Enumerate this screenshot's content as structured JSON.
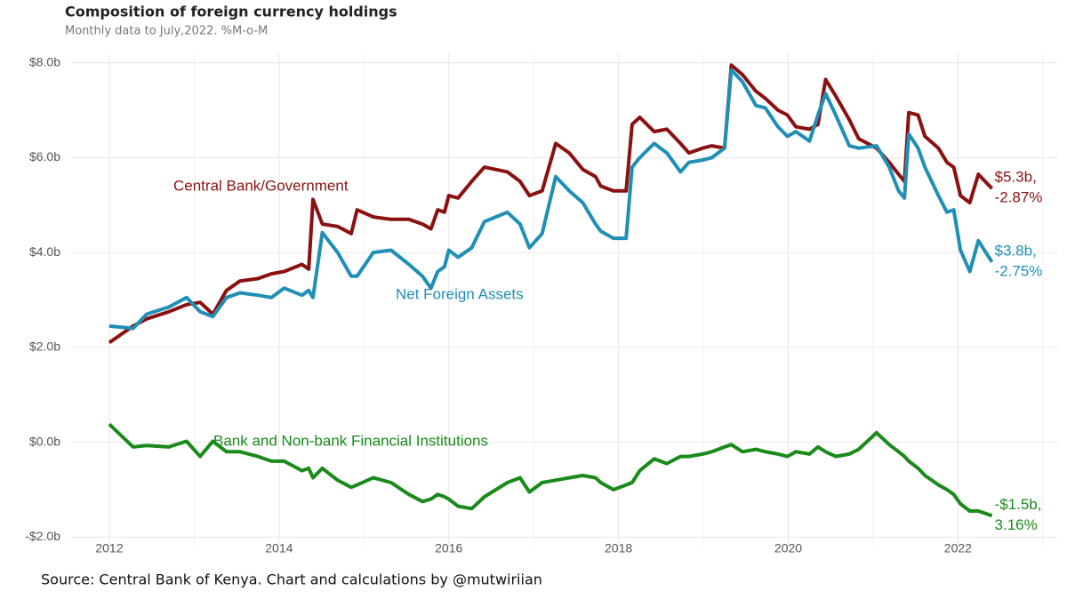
{
  "chart_data": {
    "type": "line",
    "title": "Composition of foreign currency holdings",
    "subtitle": "Monthly data to July,2022. %M-o-M",
    "source": "Source: Central Bank of Kenya. Chart and calculations by @mutwiriian",
    "x": [
      2012.0,
      2012.28,
      2012.44,
      2012.7,
      2012.91,
      2013.07,
      2013.22,
      2013.38,
      2013.54,
      2013.75,
      2013.91,
      2014.06,
      2014.27,
      2014.35,
      2014.4,
      2014.51,
      2014.69,
      2014.85,
      2014.92,
      2015.11,
      2015.32,
      2015.53,
      2015.69,
      2015.79,
      2015.87,
      2015.95,
      2016.0,
      2016.11,
      2016.27,
      2016.42,
      2016.69,
      2016.84,
      2016.95,
      2017.1,
      2017.26,
      2017.42,
      2017.58,
      2017.73,
      2017.79,
      2017.94,
      2018.09,
      2018.16,
      2018.25,
      2018.42,
      2018.57,
      2018.73,
      2018.83,
      2018.99,
      2019.1,
      2019.25,
      2019.33,
      2019.46,
      2019.62,
      2019.73,
      2019.88,
      2019.99,
      2020.09,
      2020.25,
      2020.35,
      2020.44,
      2020.56,
      2020.72,
      2020.83,
      2021.04,
      2021.19,
      2021.3,
      2021.37,
      2021.42,
      2021.53,
      2021.61,
      2021.77,
      2021.87,
      2021.95,
      2022.03,
      2022.14,
      2022.24,
      2022.4
    ],
    "series": [
      {
        "name": "Central Bank/Government",
        "color": "#8b1111",
        "end_label": [
          "$5.3b,",
          "-2.87%"
        ],
        "values": [
          2.1,
          2.45,
          2.6,
          2.75,
          2.9,
          2.95,
          2.7,
          3.2,
          3.4,
          3.45,
          3.55,
          3.6,
          3.75,
          3.65,
          5.12,
          4.6,
          4.55,
          4.4,
          4.9,
          4.75,
          4.7,
          4.7,
          4.6,
          4.5,
          4.9,
          4.85,
          5.2,
          5.15,
          5.5,
          5.8,
          5.7,
          5.5,
          5.2,
          5.3,
          6.3,
          6.1,
          5.75,
          5.6,
          5.4,
          5.3,
          5.3,
          6.7,
          6.85,
          6.55,
          6.6,
          6.3,
          6.1,
          6.2,
          6.25,
          6.2,
          7.95,
          7.75,
          7.4,
          7.25,
          7.0,
          6.9,
          6.65,
          6.6,
          6.7,
          7.65,
          7.3,
          6.8,
          6.4,
          6.2,
          5.9,
          5.65,
          5.5,
          6.95,
          6.9,
          6.45,
          6.2,
          5.9,
          5.8,
          5.2,
          5.05,
          5.65,
          5.35
        ]
      },
      {
        "name": "Net Foreign Assets",
        "color": "#1f8fb5",
        "end_label": [
          "$3.8b,",
          "-2.75%"
        ],
        "values": [
          2.45,
          2.4,
          2.7,
          2.85,
          3.05,
          2.75,
          2.65,
          3.05,
          3.15,
          3.1,
          3.05,
          3.25,
          3.1,
          3.2,
          3.05,
          4.42,
          4.0,
          3.5,
          3.5,
          4.0,
          4.05,
          3.75,
          3.5,
          3.25,
          3.6,
          3.7,
          4.05,
          3.9,
          4.1,
          4.65,
          4.85,
          4.6,
          4.1,
          4.4,
          5.6,
          5.3,
          5.05,
          4.6,
          4.45,
          4.3,
          4.3,
          5.8,
          6.0,
          6.3,
          6.1,
          5.7,
          5.9,
          5.95,
          6.0,
          6.2,
          7.85,
          7.6,
          7.1,
          7.05,
          6.65,
          6.45,
          6.55,
          6.35,
          6.9,
          7.35,
          6.9,
          6.25,
          6.2,
          6.25,
          5.8,
          5.3,
          5.15,
          6.5,
          6.2,
          5.8,
          5.2,
          4.85,
          4.9,
          4.05,
          3.6,
          4.25,
          3.8
        ]
      },
      {
        "name": "Bank and Non-bank Financial Institutions",
        "color": "#1a8a1a",
        "end_label": [
          "-$1.5b,",
          "3.16%"
        ],
        "values": [
          0.38,
          -0.1,
          -0.07,
          -0.1,
          0.02,
          -0.3,
          0.02,
          -0.2,
          -0.2,
          -0.3,
          -0.4,
          -0.4,
          -0.6,
          -0.55,
          -0.75,
          -0.55,
          -0.8,
          -0.95,
          -0.9,
          -0.75,
          -0.85,
          -1.1,
          -1.25,
          -1.2,
          -1.1,
          -1.15,
          -1.2,
          -1.35,
          -1.4,
          -1.15,
          -0.85,
          -0.75,
          -1.05,
          -0.85,
          -0.8,
          -0.75,
          -0.7,
          -0.75,
          -0.85,
          -1.0,
          -0.9,
          -0.85,
          -0.6,
          -0.35,
          -0.45,
          -0.3,
          -0.3,
          -0.25,
          -0.2,
          -0.1,
          -0.05,
          -0.2,
          -0.15,
          -0.2,
          -0.25,
          -0.3,
          -0.2,
          -0.25,
          -0.1,
          -0.2,
          -0.3,
          -0.25,
          -0.15,
          0.2,
          -0.05,
          -0.2,
          -0.3,
          -0.4,
          -0.55,
          -0.7,
          -0.9,
          -1.0,
          -1.1,
          -1.3,
          -1.45,
          -1.45,
          -1.55
        ]
      }
    ],
    "xlim": [
      2011.55,
      2023.18
    ],
    "xticks": [
      2012,
      2014,
      2016,
      2018,
      2020,
      2022
    ],
    "ylim": [
      -2.2,
      8.2
    ],
    "yticks": [
      {
        "value": -2,
        "label": "-$2.0b"
      },
      {
        "value": 0,
        "label": "$0.0b"
      },
      {
        "value": 2,
        "label": "$2.0b"
      },
      {
        "value": 4,
        "label": "$4.0b"
      },
      {
        "value": 6,
        "label": "$6.0b"
      },
      {
        "value": 8,
        "label": "$8.0b"
      }
    ],
    "grid": true
  }
}
